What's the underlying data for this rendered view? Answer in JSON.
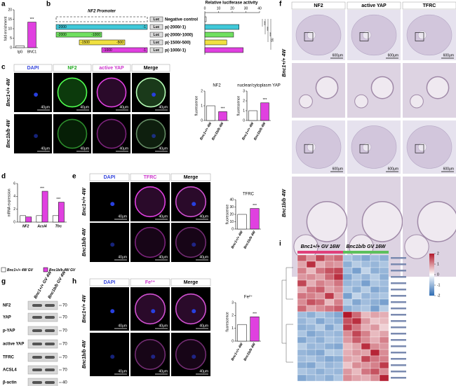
{
  "labels": [
    "a",
    "b",
    "c",
    "d",
    "e",
    "f",
    "g",
    "h",
    "i"
  ],
  "a": {
    "chart": {
      "ylabel": "fold enrichment",
      "ylim": [
        0,
        20
      ],
      "yticks": [
        0,
        5,
        10,
        15,
        20
      ],
      "categories": [
        "IgG",
        "BNC1"
      ],
      "series": [
        {
          "colors": [
            "#ffffff",
            "#e040e0"
          ],
          "values": [
            1,
            13.5
          ]
        }
      ],
      "sig": [
        null,
        "***"
      ]
    }
  },
  "b": {
    "title": "NF2 Promoter",
    "xlabel": "Relative luciferase activity",
    "xlim": [
      0,
      40
    ],
    "xticks": [
      0,
      10,
      20,
      30,
      40
    ],
    "reporter": "Luc",
    "constructs": [
      {
        "name": "Negative control",
        "value": 1,
        "color": "#ffffff"
      },
      {
        "name": "p(-2000/-1)",
        "value": 25,
        "color": "#40c8d8",
        "start": "-2000",
        "end": "-1"
      },
      {
        "name": "p(-2000/-1000)",
        "value": 21,
        "color": "#70e060",
        "start": "-2000",
        "end": "-1000"
      },
      {
        "name": "p(-1500/-500)",
        "value": 16,
        "color": "#f0e040",
        "start": "-1500",
        "end": "-500"
      },
      {
        "name": "p(-1000/-1)",
        "value": 28,
        "color": "#e040e0",
        "start": "-1000",
        "end": "-1"
      }
    ],
    "sig": [
      "***",
      "***",
      "***",
      "ns"
    ]
  },
  "c": {
    "channels": [
      "DAPI",
      "NF2",
      "active YAP",
      "Merge"
    ],
    "rows": [
      "Bnc1+/+ 4W",
      "Bnc1b/b 4W"
    ],
    "scale_bar": "40μm",
    "charts": [
      {
        "title": "NF2",
        "ylabel": "fluorescence",
        "ylim": [
          0,
          2
        ],
        "yticks": [
          0,
          1,
          2
        ],
        "categories": [
          "Bnc1+/+ 4W",
          "Bnc1b/b 4W"
        ],
        "series": [
          {
            "colors": [
              "#ffffff",
              "#e040e0"
            ],
            "values": [
              1,
              0.6
            ]
          }
        ],
        "sig": [
          null,
          "***"
        ]
      },
      {
        "title": "nuclear/cytoplasm YAP",
        "ylabel": "fluorescence",
        "ylim": [
          0,
          3
        ],
        "yticks": [
          0,
          1,
          2,
          3
        ],
        "categories": [
          "Bnc1+/+ 4W",
          "Bnc1b/b 4W"
        ],
        "series": [
          {
            "colors": [
              "#ffffff",
              "#e040e0"
            ],
            "values": [
              1,
              1.8
            ]
          }
        ],
        "sig": [
          null,
          "***"
        ]
      }
    ]
  },
  "d": {
    "chart": {
      "ylabel": "mRNA expression",
      "ylim": [
        0,
        6
      ],
      "yticks": [
        0,
        2,
        4,
        6
      ],
      "categories": [
        "NF2",
        "Acsl4",
        "Tfrc"
      ],
      "series": [
        {
          "name": "Bnc1+/+ 4W GV",
          "color": "#ffffff",
          "values": [
            1,
            1,
            1
          ]
        },
        {
          "name": "Bnc1b/b 4W GV",
          "color": "#e040e0",
          "values": [
            0.8,
            4.8,
            3.1
          ]
        }
      ],
      "sig": [
        null,
        "***",
        "***"
      ]
    }
  },
  "e": {
    "channels": [
      "DAPI",
      "TFRC",
      "Merge"
    ],
    "rows": [
      "Bnc1+/+ 4W",
      "Bnc1b/b 4W"
    ],
    "scale_bar": "40μm",
    "chart": {
      "title": "TFRC",
      "ylabel": "fluorescence",
      "ylim": [
        0,
        40
      ],
      "yticks": [
        0,
        10,
        20,
        30,
        40
      ],
      "categories": [
        "Bnc1+/+ 4W",
        "Bnc1b/b 4W"
      ],
      "series": [
        {
          "colors": [
            "#ffffff",
            "#e040e0"
          ],
          "values": [
            20,
            28
          ]
        }
      ],
      "sig": [
        null,
        "***"
      ]
    }
  },
  "f": {
    "columns": [
      "NF2",
      "active YAP",
      "TFRC"
    ],
    "rows": [
      "Bnc1+/+ 4W",
      "Bnc1b/b 4W"
    ],
    "scale_bar": "600μm"
  },
  "g": {
    "lanes": [
      "Bnc1+/+ GV 4W",
      "Bnc1b/b GV 4W"
    ],
    "proteins": [
      "NF2",
      "YAP",
      "p-YAP",
      "active YAP",
      "TFRC",
      "ACSL4",
      "β-actin"
    ],
    "kda": [
      70,
      70,
      70,
      70,
      70,
      70,
      40
    ]
  },
  "h": {
    "channels": [
      "DAPI",
      "Fe²⁺",
      "Merge"
    ],
    "rows": [
      "Bnc1+/+ 4W",
      "Bnc1b/b 4W"
    ],
    "scale_bar": "40μm",
    "chart": {
      "title": "Fe²⁺",
      "ylabel": "fluorescence",
      "ylim": [
        0,
        3
      ],
      "yticks": [
        0,
        1,
        2,
        3
      ],
      "categories": [
        "Bnc1+/+ 4W",
        "Bnc1b/b 4W"
      ],
      "series": [
        {
          "colors": [
            "#ffffff",
            "#e040e0"
          ],
          "values": [
            1.3,
            1.9
          ]
        }
      ],
      "sig": [
        null,
        "***"
      ]
    }
  },
  "i": {
    "groups": [
      "Bnc1+/+ GV 16W",
      "Bnc1b/b GV 16W"
    ],
    "scale_ticks": [
      2,
      1,
      0,
      -1,
      -2
    ],
    "matrix": [
      [
        1.4,
        0.9,
        1.6,
        1.1,
        1.3,
        -0.8,
        -1.0,
        -1.2,
        -0.9,
        -1.1
      ],
      [
        0.8,
        1.8,
        0.7,
        1.0,
        0.9,
        -1.1,
        -0.7,
        -0.9,
        -1.0,
        -0.8
      ],
      [
        1.1,
        0.6,
        1.2,
        1.5,
        1.6,
        -0.9,
        -1.3,
        -0.6,
        -1.1,
        -1.0
      ],
      [
        0.9,
        1.0,
        0.8,
        1.3,
        1.8,
        -1.2,
        -0.8,
        -1.0,
        -0.7,
        -1.1
      ],
      [
        1.6,
        0.7,
        1.1,
        0.9,
        1.2,
        -1.0,
        -0.9,
        -1.3,
        -0.8,
        -0.9
      ],
      [
        0.7,
        1.2,
        1.4,
        0.8,
        1.0,
        -0.8,
        -1.1,
        -0.7,
        -1.2,
        -1.0
      ],
      [
        1.2,
        1.1,
        0.9,
        1.7,
        0.8,
        -1.3,
        -0.6,
        -1.0,
        -0.9,
        -0.8
      ],
      [
        1.0,
        1.5,
        1.3,
        0.6,
        1.1,
        -0.7,
        -1.2,
        -0.9,
        -1.1,
        -1.3
      ],
      [
        1.3,
        0.8,
        1.0,
        1.2,
        1.4,
        -1.1,
        -0.9,
        -0.8,
        -1.3,
        -0.7
      ],
      [
        -0.9,
        -1.1,
        -0.8,
        -1.0,
        -1.2,
        2.1,
        1.3,
        0.6,
        0.8,
        0.7
      ],
      [
        -1.0,
        -0.8,
        -1.2,
        -0.9,
        -1.1,
        1.5,
        1.8,
        0.9,
        0.5,
        0.6
      ],
      [
        -1.1,
        -1.0,
        -0.7,
        -1.2,
        -0.8,
        1.7,
        1.2,
        0.7,
        0.9,
        0.4
      ],
      [
        -0.8,
        -1.2,
        -1.0,
        -0.9,
        -1.0,
        1.0,
        1.6,
        1.1,
        0.6,
        0.8
      ],
      [
        -1.2,
        -0.9,
        -1.1,
        -0.8,
        -0.9,
        0.9,
        1.4,
        1.0,
        0.7,
        1.1
      ],
      [
        -0.7,
        -1.0,
        -0.9,
        -1.1,
        -1.2,
        0.6,
        0.8,
        1.8,
        1.0,
        0.9
      ],
      [
        -1.0,
        -1.1,
        -1.2,
        -0.7,
        -0.8,
        0.7,
        0.9,
        0.8,
        1.9,
        1.0
      ],
      [
        -0.9,
        -0.8,
        -1.0,
        -1.2,
        -1.1,
        0.8,
        0.7,
        1.6,
        1.2,
        1.1
      ],
      [
        -1.1,
        -1.2,
        -0.8,
        -1.0,
        -0.9,
        0.5,
        1.0,
        0.9,
        1.1,
        1.7
      ],
      [
        -0.8,
        -0.9,
        -1.1,
        -0.9,
        -1.0,
        0.9,
        0.6,
        1.2,
        1.5,
        1.0
      ],
      [
        -1.2,
        -1.0,
        -0.9,
        -1.1,
        -0.8,
        1.0,
        0.8,
        0.7,
        1.0,
        1.9
      ]
    ]
  }
}
